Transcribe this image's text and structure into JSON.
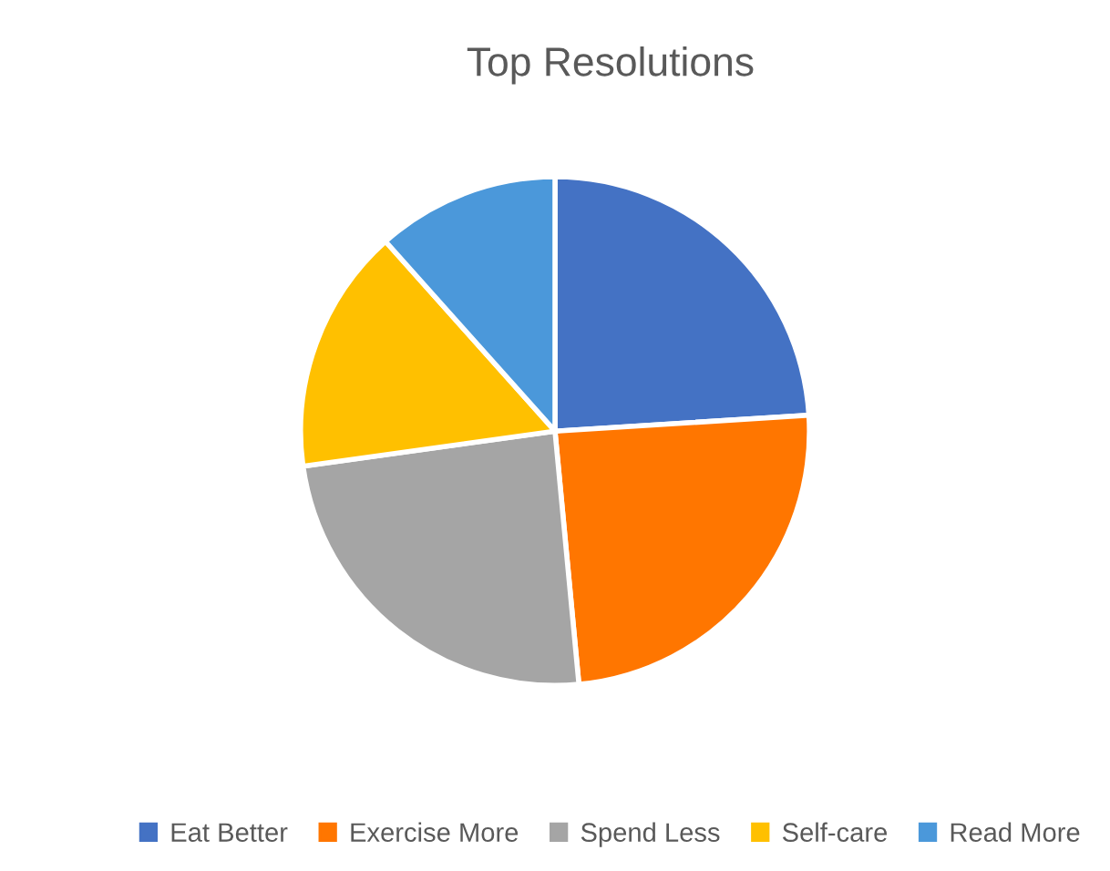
{
  "chart_data": {
    "type": "pie",
    "title": "Top Resolutions",
    "categories": [
      "Eat Better",
      "Exercise More",
      "Spend Less",
      "Self-care",
      "Read More"
    ],
    "values": [
      24,
      24.5,
      24.3,
      15.6,
      11.6
    ],
    "colors": [
      "#4472c4",
      "#ff7600",
      "#a5a5a5",
      "#ffc000",
      "#4b98da"
    ],
    "legend": "bottom"
  }
}
